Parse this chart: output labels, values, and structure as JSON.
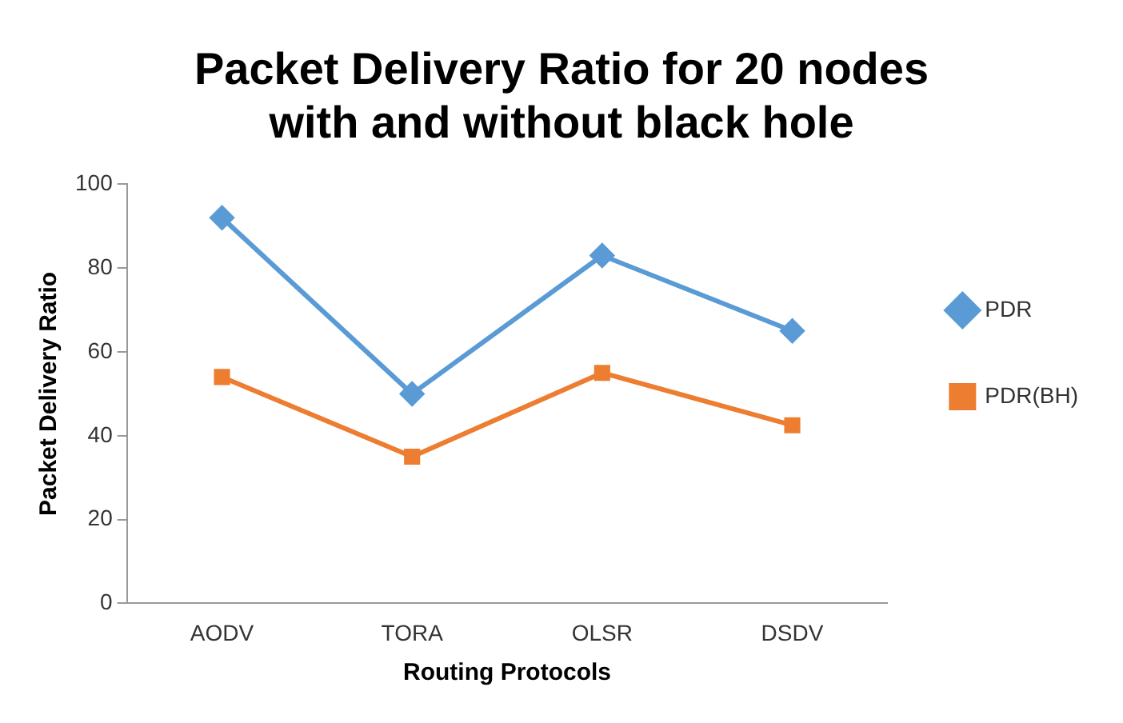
{
  "chart_data": {
    "type": "line",
    "title": "Packet Delivery Ratio for 20 nodes with and without black hole",
    "xlabel": "Routing Protocols",
    "ylabel": "Packet Delivery Ratio",
    "categories": [
      "AODV",
      "TORA",
      "OLSR",
      "DSDV"
    ],
    "series": [
      {
        "name": "PDR",
        "color": "#5b9bd5",
        "values": [
          92,
          50,
          83,
          65
        ],
        "marker": "diamond"
      },
      {
        "name": "PDR(BH)",
        "color": "#ed7d31",
        "values": [
          54,
          35,
          55,
          42.5
        ],
        "marker": "square"
      }
    ],
    "ylim": [
      0,
      100
    ],
    "yticks": [
      0,
      20,
      40,
      60,
      80,
      100
    ],
    "grid": false,
    "legend": "right"
  }
}
